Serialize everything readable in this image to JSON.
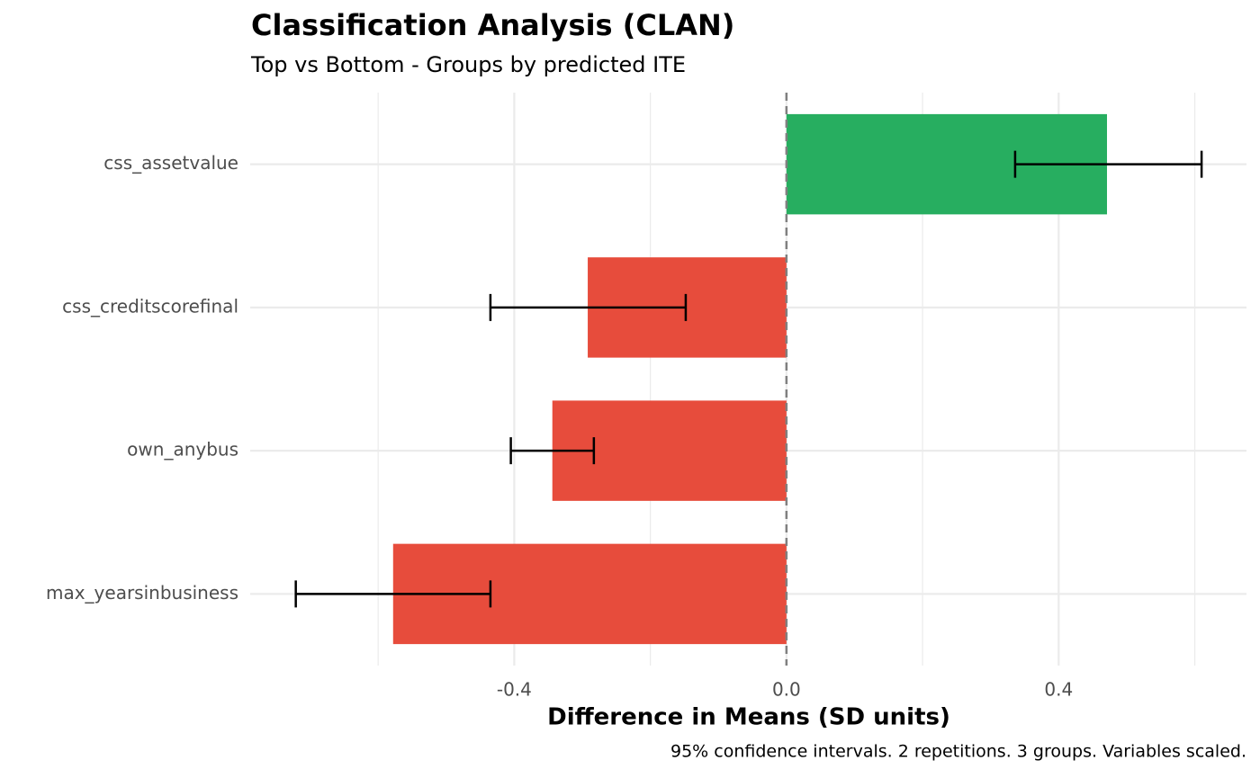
{
  "chart_data": {
    "type": "hbar_errorbar",
    "title": "Classification Analysis (CLAN)",
    "subtitle": "Top vs Bottom - Groups by predicted ITE",
    "x_label": "Difference in Means (SD units)",
    "caption": "95% confidence intervals. 2 repetitions. 3 groups. Variables scaled.",
    "categories": [
      "css_assetvalue",
      "css_creditscorefinal",
      "own_anybus",
      "max_yearsinbusiness"
    ],
    "values": [
      0.471,
      -0.292,
      -0.344,
      -0.578
    ],
    "colors": [
      "#27ae60",
      "#e74c3c",
      "#e74c3c",
      "#e74c3c"
    ],
    "ci_lower": [
      0.336,
      -0.435,
      -0.405,
      -0.721
    ],
    "ci_upper": [
      0.61,
      -0.148,
      -0.283,
      -0.435
    ],
    "xlim": [
      -0.788,
      0.676
    ],
    "xticks": [
      {
        "value": -0.4,
        "label": "-0.4"
      },
      {
        "value": 0,
        "label": "0.0"
      },
      0.4
    ],
    "x_minor_grid": [
      -0.6,
      -0.2,
      0.2,
      0.6
    ],
    "reference_line": 0,
    "grid": true
  }
}
